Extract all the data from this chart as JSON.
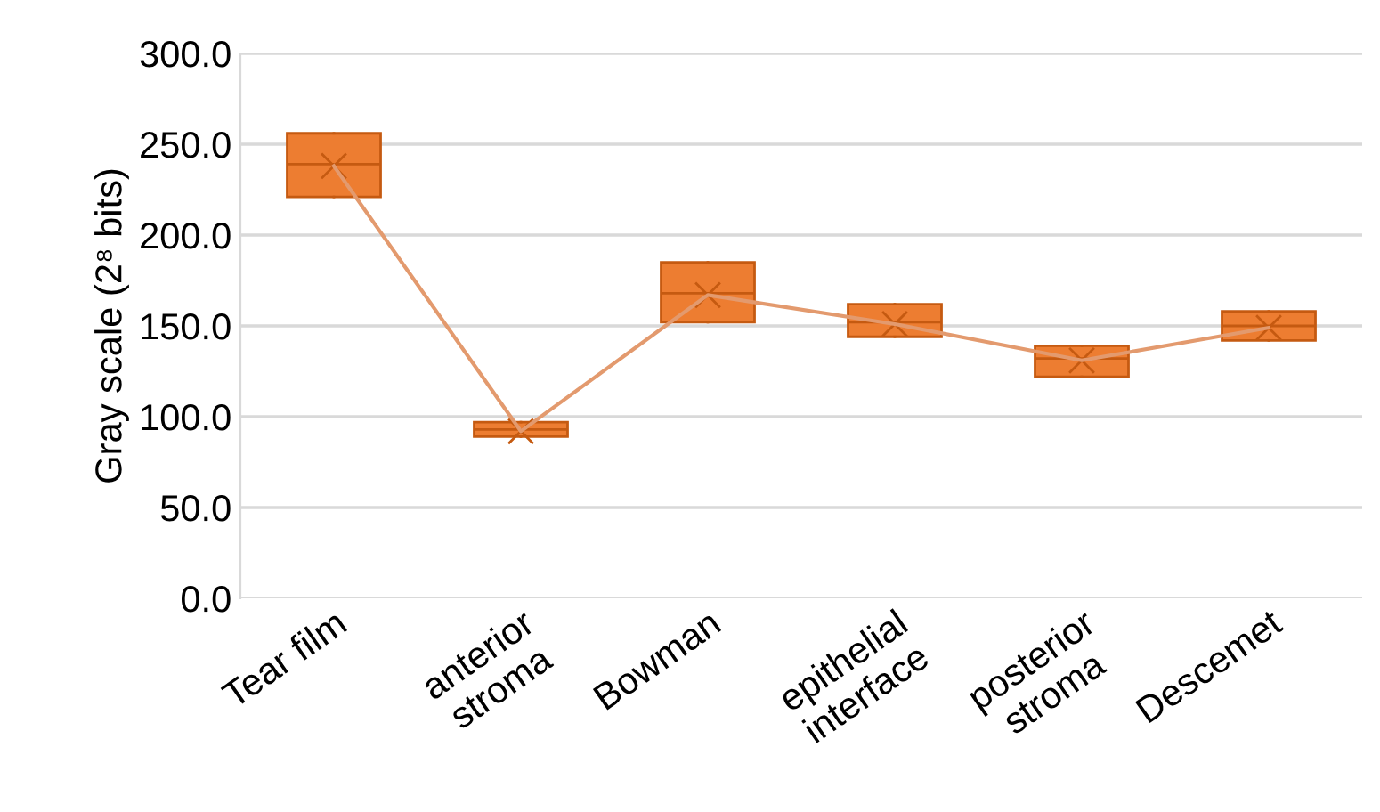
{
  "chart_data": {
    "type": "box",
    "ylabel": "Gray scale (2⁸ bits)",
    "categories": [
      "Tear film",
      "anterior\nstroma",
      "Bowman",
      "epithelial\ninterface",
      "posterior\nstroma",
      "Descemet"
    ],
    "boxes": [
      {
        "low": 221,
        "q1": 221,
        "median": 239,
        "q3": 256,
        "high": 256,
        "mean": 238
      },
      {
        "low": 89,
        "q1": 89,
        "median": 93,
        "q3": 97,
        "high": 97,
        "mean": 92
      },
      {
        "low": 152,
        "q1": 152,
        "median": 168,
        "q3": 185,
        "high": 185,
        "mean": 167
      },
      {
        "low": 144,
        "q1": 144,
        "median": 152,
        "q3": 162,
        "high": 162,
        "mean": 151
      },
      {
        "low": 122,
        "q1": 122,
        "median": 132,
        "q3": 139,
        "high": 139,
        "mean": 131
      },
      {
        "low": 142,
        "q1": 142,
        "median": 150,
        "q3": 158,
        "high": 158,
        "mean": 149
      }
    ],
    "series": [
      {
        "type": "line",
        "color": "#e39a6e",
        "values": [
          238,
          92,
          167,
          151,
          131,
          149
        ]
      }
    ],
    "color": "#ed7d31",
    "ylim": [
      0,
      300
    ],
    "yticks": [
      {
        "value": 0,
        "label": "0.0"
      },
      {
        "value": 50,
        "label": "50.0"
      },
      {
        "value": 100,
        "label": "100.0"
      },
      {
        "value": 150,
        "label": "150.0"
      },
      {
        "value": 200,
        "label": "200.0"
      },
      {
        "value": 250,
        "label": "250.0"
      },
      {
        "value": 300,
        "label": "300.0"
      }
    ],
    "grid": "y",
    "marker": "none",
    "line_style": "solid"
  }
}
